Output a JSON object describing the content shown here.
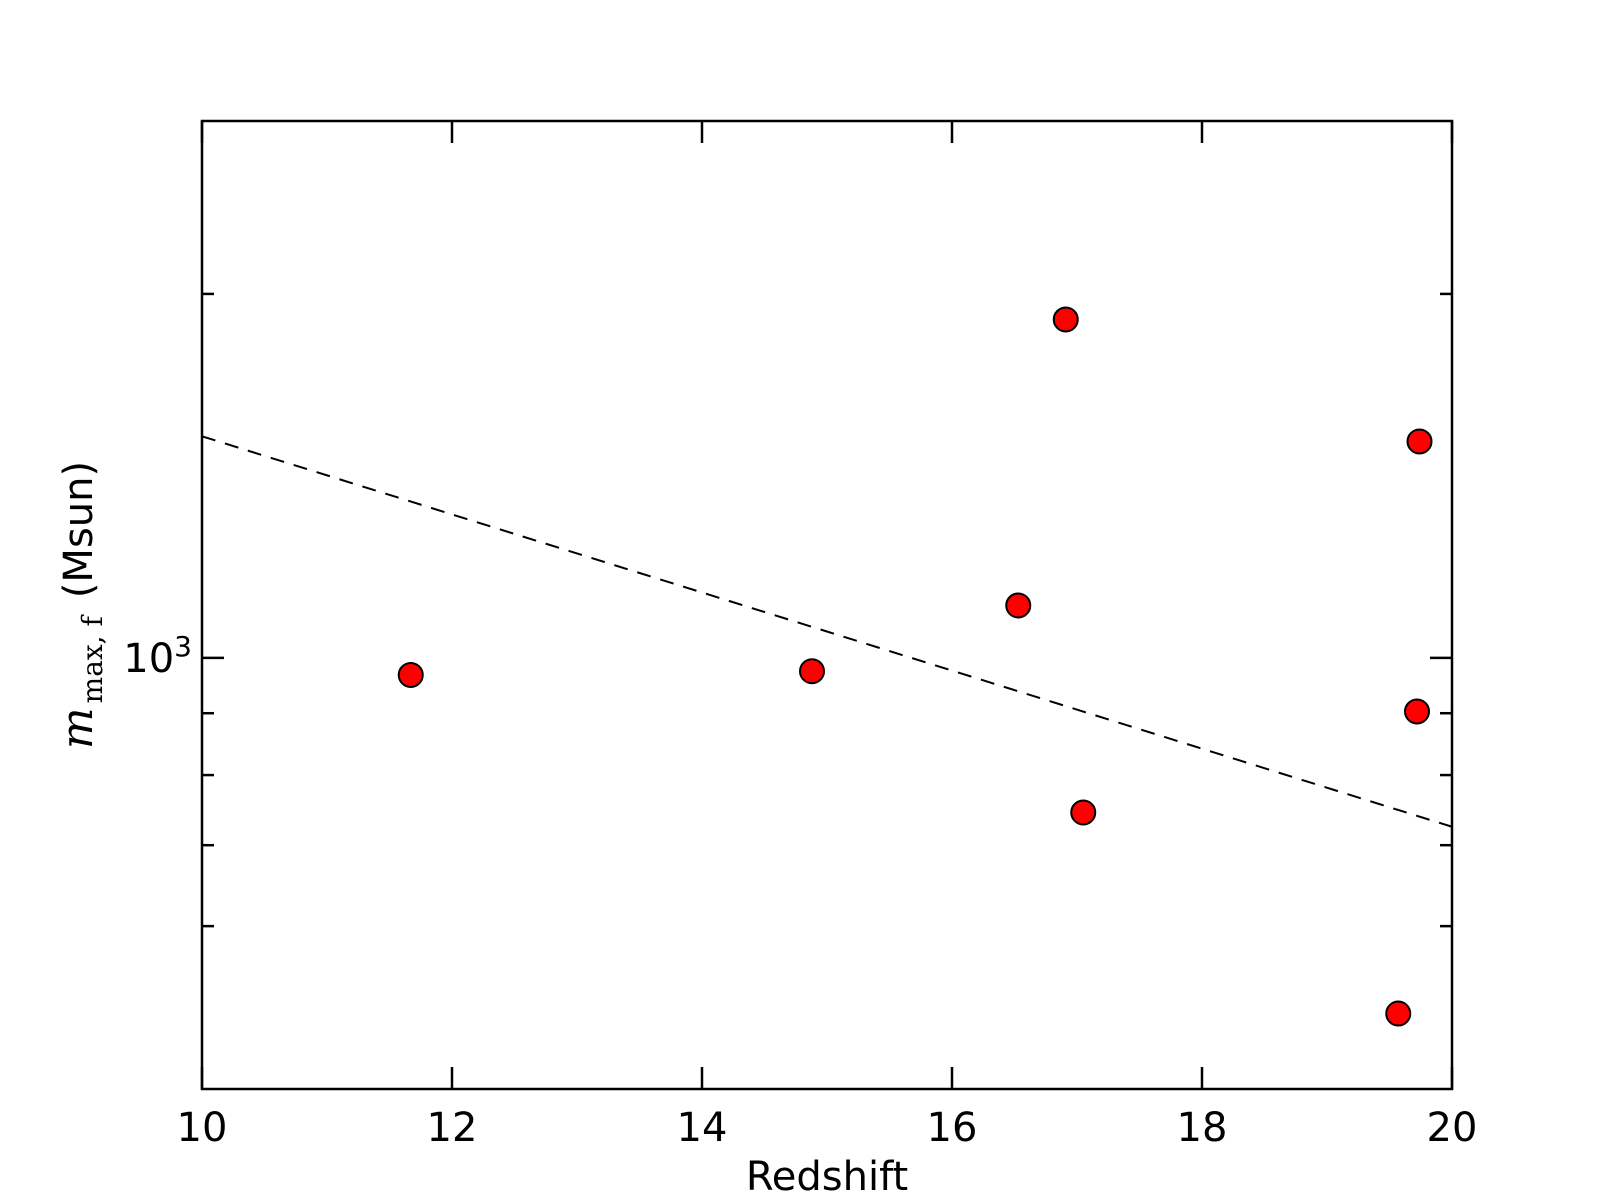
{
  "chart_data": {
    "type": "scatter",
    "xlabel": "Redshift",
    "ylabel": {
      "symbol": "m",
      "subscript": "max, f",
      "unit": "(Msun)"
    },
    "xlim": [
      10,
      20
    ],
    "ylim": [
      440,
      2780
    ],
    "yscale": "log",
    "x_ticks": [
      "10",
      "12",
      "14",
      "16",
      "18",
      "20"
    ],
    "y_tick_labels": [
      {
        "value": 1000,
        "base": "10",
        "exponent": "3"
      }
    ],
    "y_minor_ticks": [
      600,
      700,
      800,
      900,
      2000
    ],
    "grid": false,
    "legend": "none",
    "points": [
      {
        "x": 11.67,
        "y": 968
      },
      {
        "x": 14.88,
        "y": 975
      },
      {
        "x": 16.53,
        "y": 1105
      },
      {
        "x": 16.91,
        "y": 1905
      },
      {
        "x": 17.05,
        "y": 745
      },
      {
        "x": 19.57,
        "y": 508
      },
      {
        "x": 19.72,
        "y": 903
      },
      {
        "x": 19.74,
        "y": 1510
      }
    ],
    "fit_line": {
      "style": "dashed",
      "color": "#000000",
      "x": [
        10,
        20
      ],
      "y": [
        1525,
        725
      ]
    },
    "colors": {
      "marker_fill": "#ff0000",
      "marker_edge": "#000000",
      "axes": "#000000"
    }
  }
}
